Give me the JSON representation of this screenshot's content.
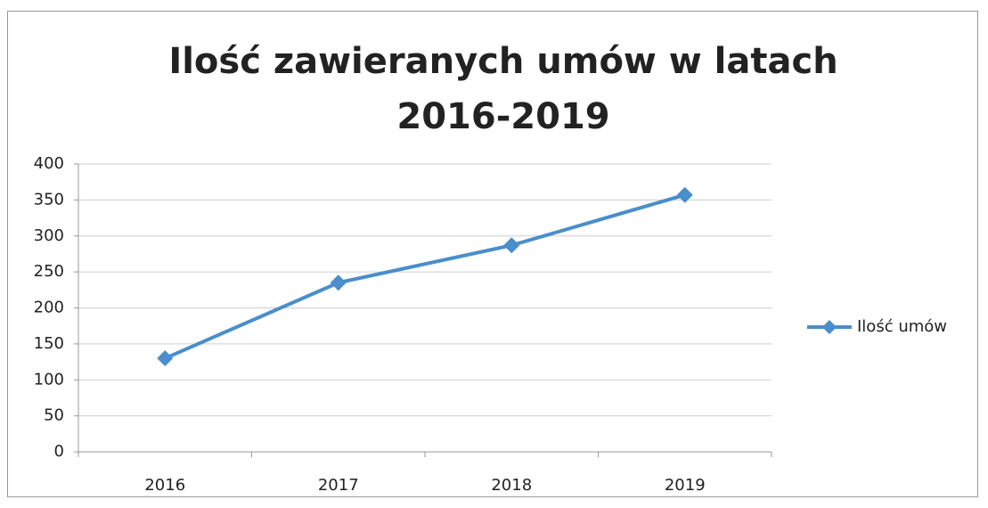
{
  "chart_data": {
    "type": "line",
    "title": "Ilość zawieranych umów w latach 2016-2019",
    "categories": [
      "2016",
      "2017",
      "2018",
      "2019"
    ],
    "series": [
      {
        "name": "Ilość umów",
        "color": "#4a8ecb",
        "values": [
          130,
          235,
          287,
          357
        ]
      }
    ],
    "ylim": [
      0,
      400
    ],
    "yticks": [
      0,
      50,
      100,
      150,
      200,
      250,
      300,
      350,
      400
    ],
    "grid": true,
    "legend": "right"
  }
}
